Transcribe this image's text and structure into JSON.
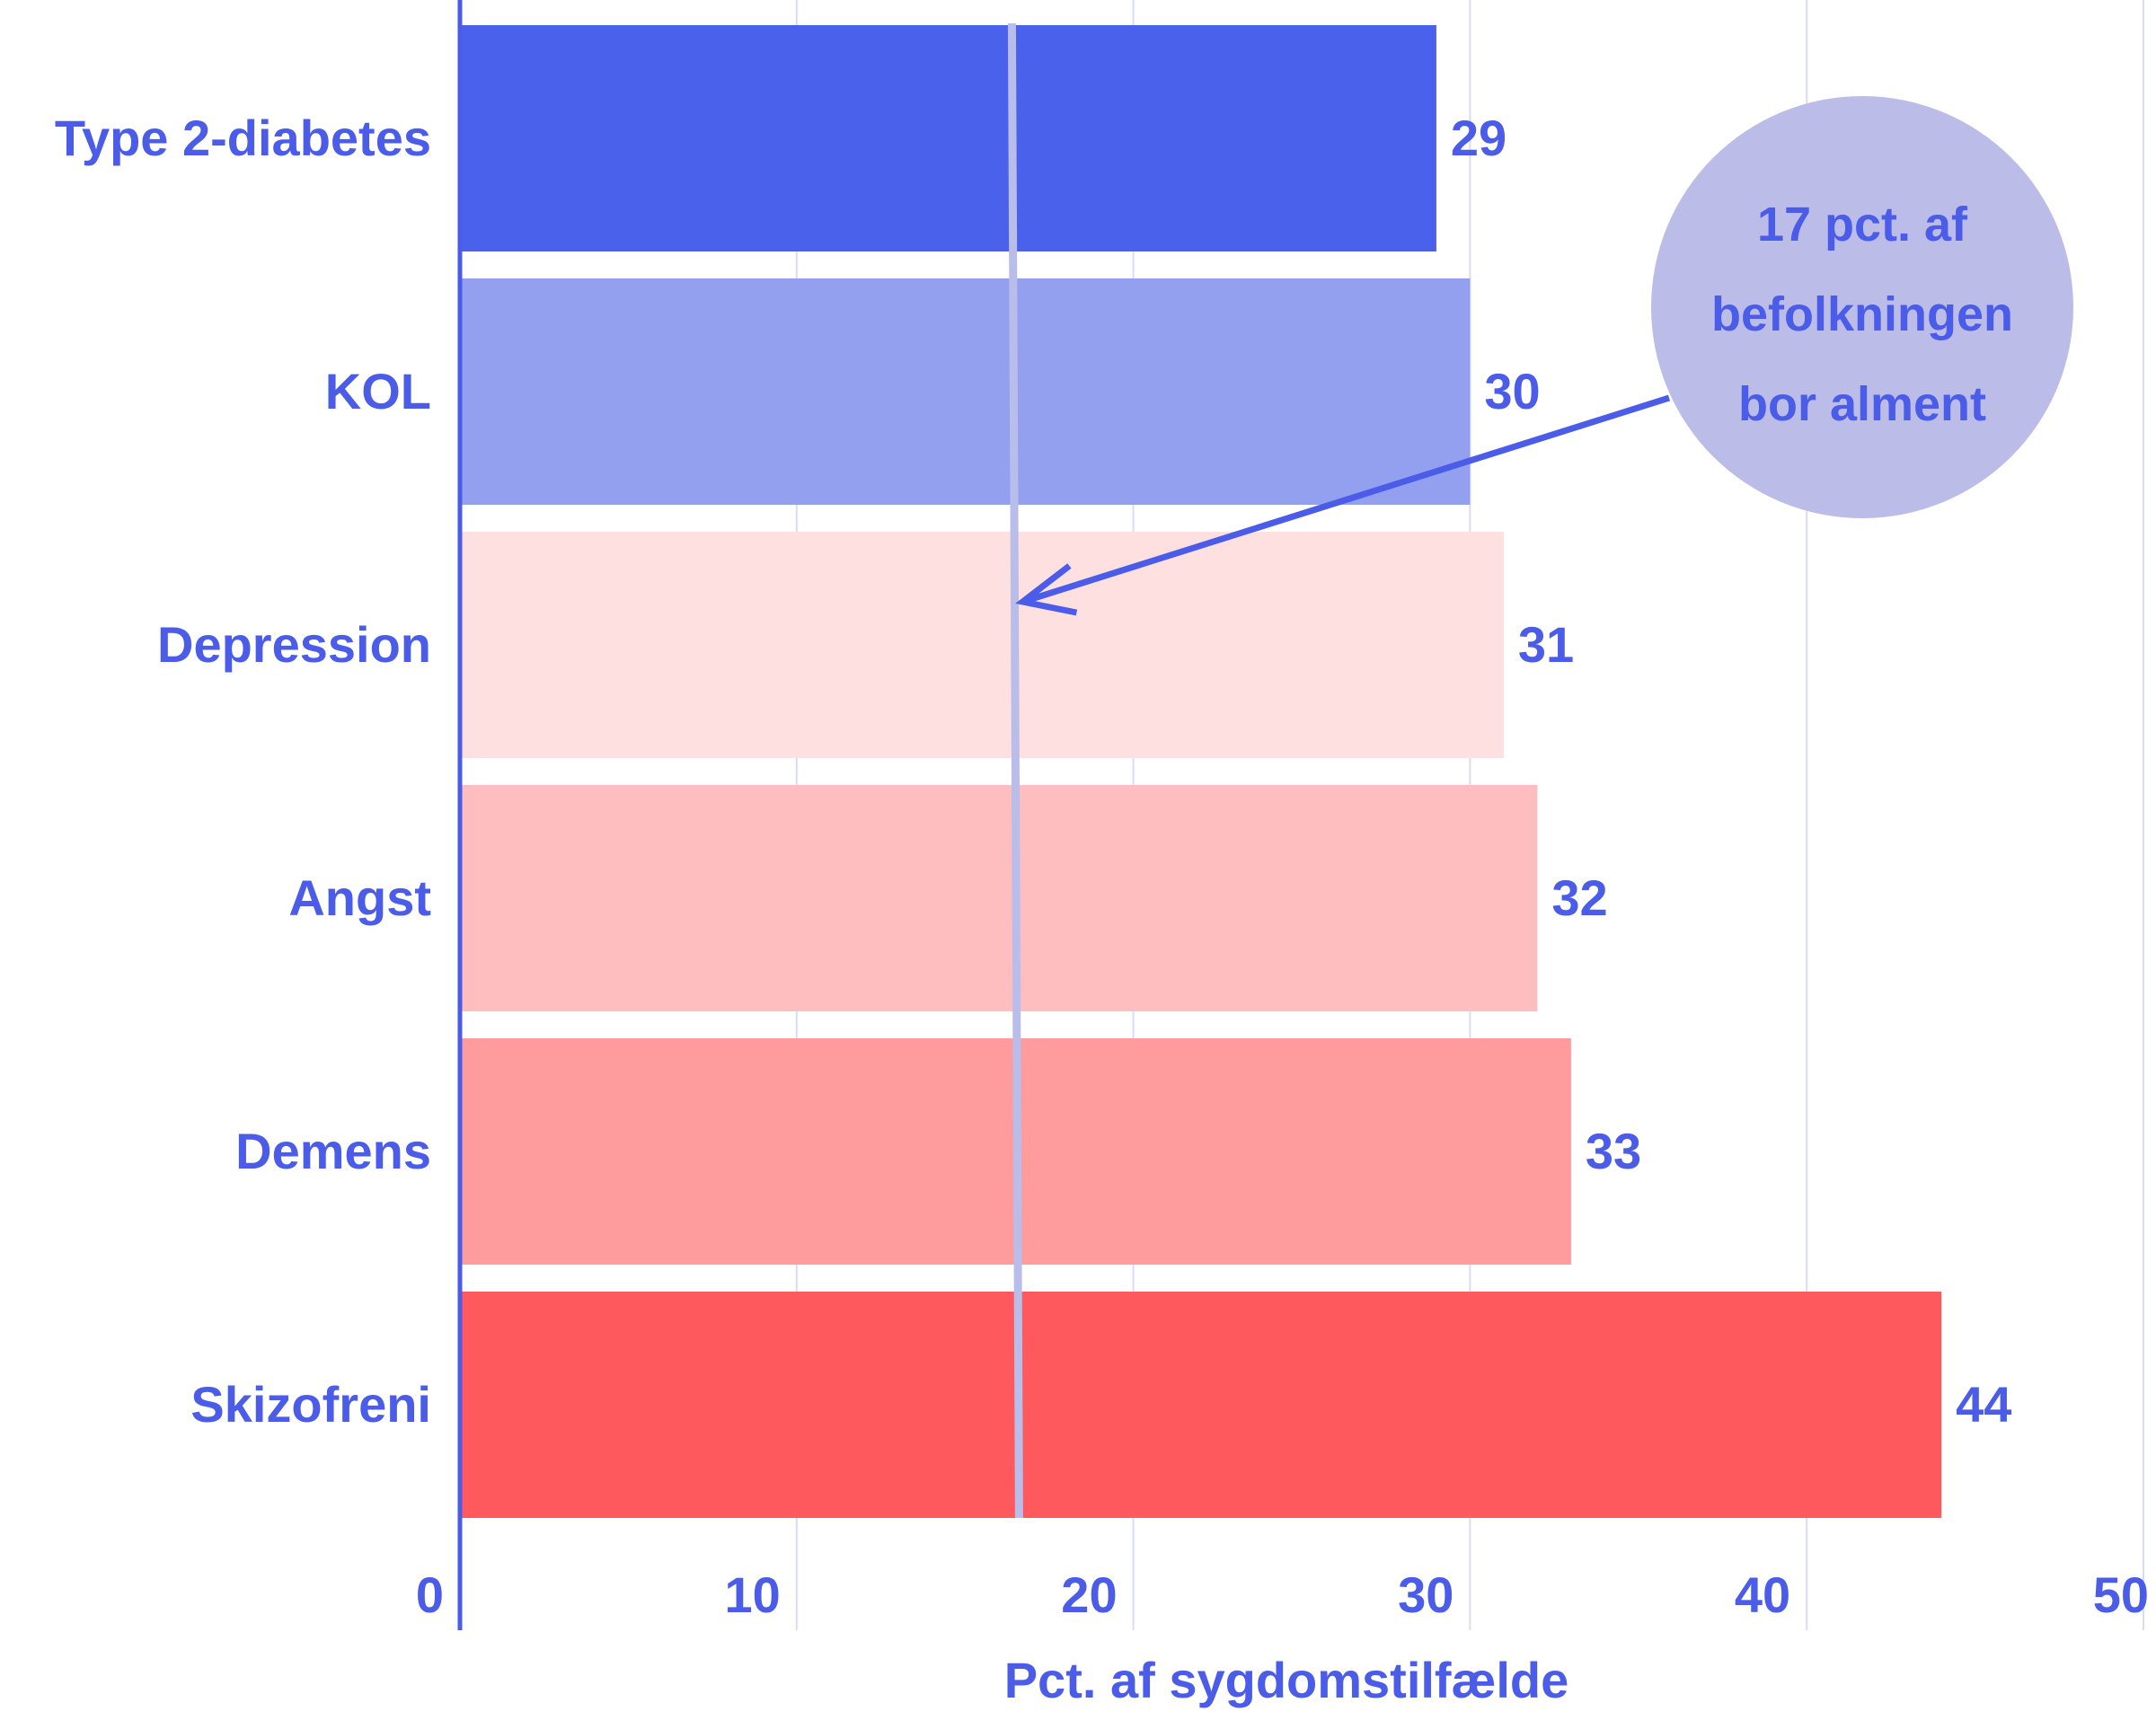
{
  "chart_data": {
    "type": "bar",
    "orientation": "horizontal",
    "categories": [
      "Type 2-diabetes",
      "KOL",
      "Depression",
      "Angst",
      "Demens",
      "Skizofreni"
    ],
    "values": [
      29,
      30,
      31,
      32,
      33,
      44
    ],
    "value_labels": [
      "29",
      "30",
      "31",
      "32",
      "33",
      "44"
    ],
    "bar_colors": [
      "#4a62eb",
      "#93a0f0",
      "#fde0df",
      "#febdbf",
      "#fe9b9c",
      "#fe5a5d"
    ],
    "xlabel": "Pct. af sygdomstilfælde",
    "xlim": [
      0,
      50
    ],
    "xticks": [
      0,
      10,
      20,
      30,
      40,
      50
    ],
    "xtick_labels": [
      "0",
      "10",
      "20",
      "30",
      "40",
      "50"
    ],
    "grid": "vertical",
    "reference_line": {
      "value": 16.5
    },
    "annotation": {
      "lines": [
        "17 pct. af",
        "befolkningen",
        "bor alment"
      ],
      "points_to": 16.5
    },
    "colors": {
      "text": "#4a5ce8",
      "axis": "#4a5ce8",
      "grid": "#d9dcf7",
      "reference_line": "#b9bdea",
      "annotation_bubble": "#bbbde8",
      "arrow": "#4a5ce8"
    }
  }
}
